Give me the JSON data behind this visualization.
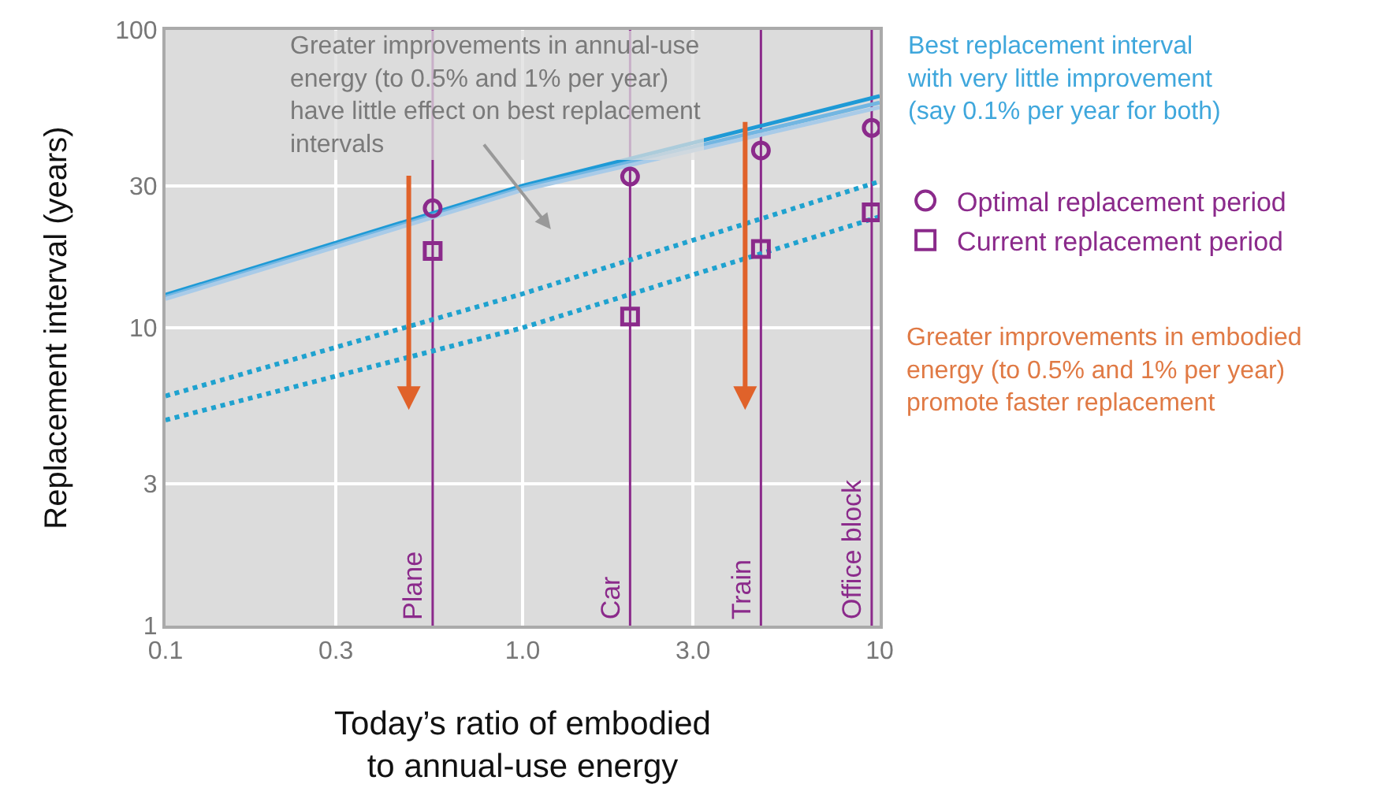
{
  "chart_data": {
    "type": "line",
    "xlabel": "Today’s ratio of embodied\nto annual-use energy",
    "ylabel": "Replacement interval (years)",
    "log": "xy",
    "xlim": [
      0.1,
      10
    ],
    "ylim": [
      1,
      100
    ],
    "xticks": [
      0.1,
      0.3,
      {
        "value": 1,
        "label": "1.0"
      },
      {
        "value": 3,
        "label": "3.0"
      },
      10
    ],
    "yticks": [
      1,
      3,
      10,
      30,
      100
    ],
    "grid": true,
    "legend": "right",
    "series": [
      {
        "type": "line",
        "color": "#1e9ad6",
        "line_style": "solid",
        "x": [
          0.1,
          1,
          10
        ],
        "values": [
          12.9,
          30,
          60
        ]
      },
      {
        "type": "line",
        "color": "#72b6e2",
        "line_style": "solid",
        "x": [
          0.1,
          1,
          10
        ],
        "values": [
          12.7,
          29.5,
          57
        ]
      },
      {
        "type": "line",
        "color": "#a9cbe8",
        "line_style": "solid",
        "x": [
          0.1,
          1,
          10
        ],
        "values": [
          12.5,
          29,
          55
        ]
      },
      {
        "type": "line",
        "color": "#1fa2cf",
        "line_style": "dotted",
        "x": [
          0.1,
          1,
          10
        ],
        "values": [
          5.9,
          13,
          31
        ]
      },
      {
        "type": "line",
        "color": "#1fa2cf",
        "line_style": "dotted",
        "x": [
          0.1,
          1,
          10
        ],
        "values": [
          4.9,
          10,
          23.6
        ]
      },
      {
        "type": "scatter",
        "name": "Optimal replacement period",
        "color": "#8b2a8b",
        "marker": "circle",
        "x": [
          0.56,
          2.0,
          4.65,
          9.5
        ],
        "values": [
          25.2,
          32.2,
          39.4,
          46.9
        ]
      },
      {
        "type": "scatter",
        "name": "Current replacement period",
        "color": "#8b2a8b",
        "marker": "square",
        "x": [
          0.56,
          2.0,
          4.65,
          9.5
        ],
        "values": [
          18.1,
          10.9,
          18.4,
          24.4
        ]
      }
    ],
    "ref_lines": [
      {
        "axis": "x",
        "value": 0.56,
        "label": "Plane",
        "color": "#8b2a8b"
      },
      {
        "axis": "x",
        "value": 2.0,
        "label": "Car",
        "color": "#8b2a8b"
      },
      {
        "axis": "x",
        "value": 4.65,
        "label": "Train",
        "color": "#8b2a8b"
      },
      {
        "axis": "x",
        "value": 9.5,
        "label": "Office block",
        "color": "#8b2a8b"
      }
    ],
    "annotations": [
      "Greater improvements in annual-use\nenergy (to 0.5% and 1% per year)\nhave little effect on best replacement\nintervals",
      "Best replacement interval\nwith very little improvement\n(say 0.1% per year for both)",
      "Greater improvements in embodied\nenergy (to 0.5% and 1% per year)\npromote faster replacement"
    ]
  }
}
